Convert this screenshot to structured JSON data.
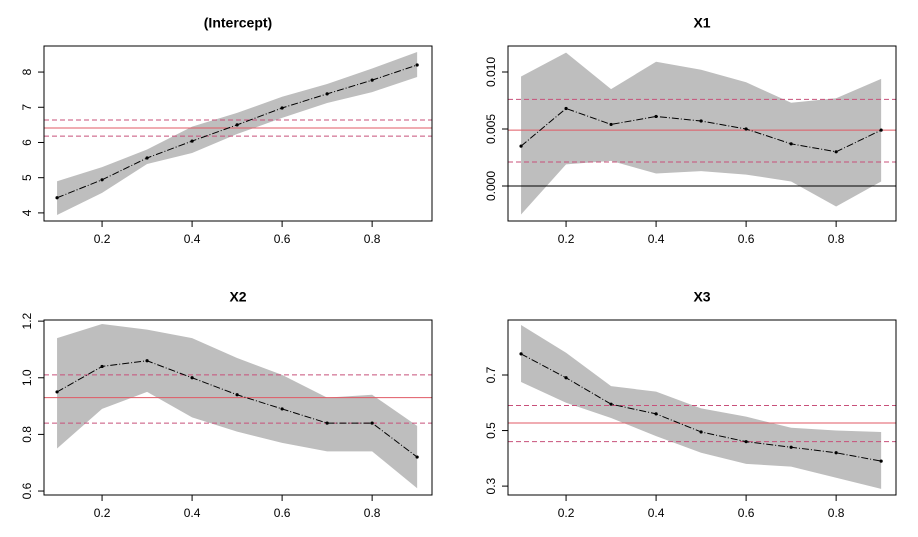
{
  "chart_data": [
    {
      "type": "line",
      "title": "(Intercept)",
      "x": [
        0.1,
        0.2,
        0.3,
        0.4,
        0.5,
        0.6,
        0.7,
        0.8,
        0.9
      ],
      "series": [
        {
          "color": "#000000",
          "values": [
            4.43,
            4.94,
            5.56,
            6.04,
            6.5,
            6.98,
            7.38,
            7.77,
            8.2
          ]
        }
      ],
      "band": {
        "color": "#bebebe",
        "upper": [
          4.9,
          5.3,
          5.8,
          6.45,
          6.84,
          7.3,
          7.66,
          8.1,
          8.57
        ],
        "lower": [
          3.94,
          4.57,
          5.39,
          5.7,
          6.24,
          6.7,
          7.12,
          7.43,
          7.86
        ]
      },
      "hlines": [
        {
          "value": 6.41,
          "color": "#e05a64",
          "style": "solid"
        },
        {
          "value": 6.64,
          "color": "#c8507a",
          "style": "dashed"
        },
        {
          "value": 6.18,
          "color": "#c8507a",
          "style": "dashed"
        }
      ],
      "xlim": [
        0.071,
        0.933
      ],
      "ylim": [
        3.77,
        8.74
      ],
      "xticks": [
        0.2,
        0.4,
        0.6,
        0.8
      ],
      "yticks": [
        4,
        5,
        6,
        7,
        8
      ]
    },
    {
      "type": "line",
      "title": "X1",
      "x": [
        0.1,
        0.2,
        0.3,
        0.4,
        0.5,
        0.6,
        0.7,
        0.8,
        0.9
      ],
      "series": [
        {
          "color": "#000000",
          "values": [
            0.0035,
            0.0068,
            0.0054,
            0.0061,
            0.0057,
            0.005,
            0.0037,
            0.003,
            0.0049
          ]
        }
      ],
      "band": {
        "color": "#bebebe",
        "upper": [
          0.0096,
          0.0117,
          0.0085,
          0.0109,
          0.0102,
          0.0091,
          0.0073,
          0.0077,
          0.0094
        ],
        "lower": [
          -0.0025,
          0.0019,
          0.0022,
          0.0011,
          0.0013,
          0.001,
          0.0004,
          -0.0018,
          0.0004
        ]
      },
      "hlines": [
        {
          "value": 0,
          "color": "#000000",
          "style": "solid"
        },
        {
          "value": 0.0049,
          "color": "#e05a64",
          "style": "solid"
        },
        {
          "value": 0.0076,
          "color": "#c8507a",
          "style": "dashed"
        },
        {
          "value": 0.0021,
          "color": "#c8507a",
          "style": "dashed"
        }
      ],
      "xlim": [
        0.071,
        0.933
      ],
      "ylim": [
        -0.00307,
        0.01228
      ],
      "xticks": [
        0.2,
        0.4,
        0.6,
        0.8
      ],
      "yticks": [
        {
          "value": 0,
          "label": "0.000"
        },
        {
          "value": 0.005,
          "label": "0.005"
        },
        {
          "value": 0.01,
          "label": "0.010"
        }
      ]
    },
    {
      "type": "line",
      "title": "X2",
      "x": [
        0.1,
        0.2,
        0.3,
        0.4,
        0.5,
        0.6,
        0.7,
        0.8,
        0.9
      ],
      "series": [
        {
          "color": "#000000",
          "values": [
            0.95,
            1.04,
            1.06,
            1.0,
            0.94,
            0.89,
            0.84,
            0.84,
            0.72
          ]
        }
      ],
      "band": {
        "color": "#bebebe",
        "upper": [
          1.14,
          1.19,
          1.17,
          1.14,
          1.07,
          1.01,
          0.93,
          0.94,
          0.83
        ],
        "lower": [
          0.75,
          0.89,
          0.95,
          0.86,
          0.81,
          0.77,
          0.74,
          0.74,
          0.61
        ]
      },
      "hlines": [
        {
          "value": 0.93,
          "color": "#e05a64",
          "style": "solid"
        },
        {
          "value": 1.01,
          "color": "#c8507a",
          "style": "dashed"
        },
        {
          "value": 0.84,
          "color": "#c8507a",
          "style": "dashed"
        }
      ],
      "xlim": [
        0.071,
        0.933
      ],
      "ylim": [
        0.586,
        1.204
      ],
      "xticks": [
        0.2,
        0.4,
        0.6,
        0.8
      ],
      "yticks": [
        0.6,
        0.8,
        {
          "value": 1.0,
          "label": "1.0"
        },
        1.2
      ]
    },
    {
      "type": "line",
      "title": "X3",
      "x": [
        0.1,
        0.2,
        0.3,
        0.4,
        0.5,
        0.6,
        0.7,
        0.8,
        0.9
      ],
      "series": [
        {
          "color": "#000000",
          "values": [
            0.776,
            0.69,
            0.595,
            0.56,
            0.495,
            0.46,
            0.44,
            0.42,
            0.39
          ]
        }
      ],
      "band": {
        "color": "#bebebe",
        "upper": [
          0.88,
          0.78,
          0.66,
          0.64,
          0.58,
          0.55,
          0.51,
          0.5,
          0.495
        ],
        "lower": [
          0.675,
          0.6,
          0.545,
          0.48,
          0.42,
          0.38,
          0.37,
          0.33,
          0.29
        ]
      },
      "hlines": [
        {
          "value": 0.527,
          "color": "#e05a64",
          "style": "solid"
        },
        {
          "value": 0.59,
          "color": "#c8507a",
          "style": "dashed"
        },
        {
          "value": 0.46,
          "color": "#c8507a",
          "style": "dashed"
        }
      ],
      "xlim": [
        0.071,
        0.933
      ],
      "ylim": [
        0.268,
        0.898
      ],
      "xticks": [
        0.2,
        0.4,
        0.6,
        0.8
      ],
      "yticks": [
        0.3,
        0.5,
        0.7
      ]
    }
  ]
}
